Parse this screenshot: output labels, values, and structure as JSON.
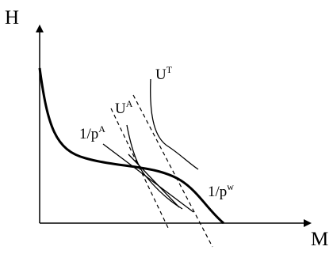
{
  "axes": {
    "y_label": "H",
    "x_label": "M"
  },
  "labels": {
    "ut_base": "U",
    "ut_sup": "T",
    "ua_base": "U",
    "ua_sup": "A",
    "pa_base": "1/p",
    "pa_sup": "A",
    "pw_base": "1/p",
    "pw_sup": "w"
  },
  "colors": {
    "ink": "#000000"
  }
}
